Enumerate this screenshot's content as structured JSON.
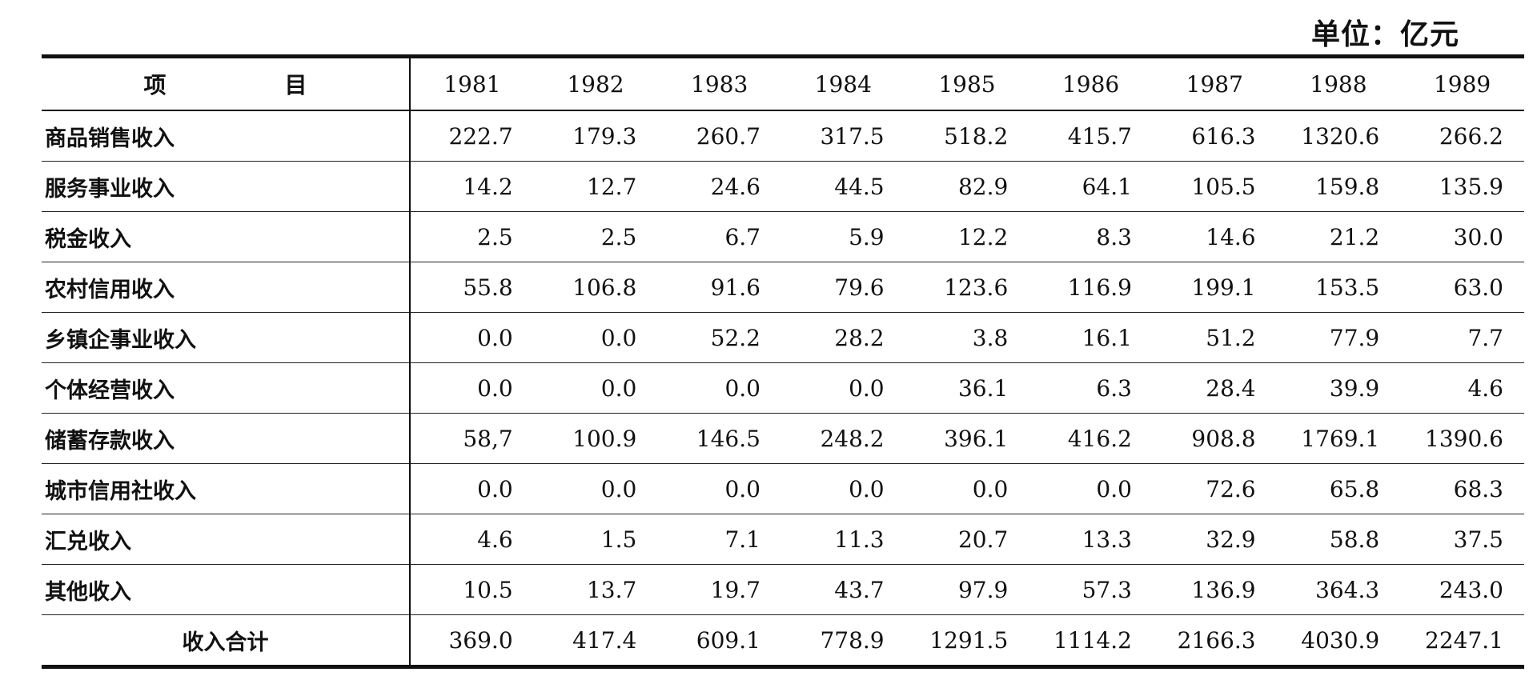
{
  "unit_label": "单位：亿元",
  "table": {
    "header_label": "项　目",
    "years": [
      "1981",
      "1982",
      "1983",
      "1984",
      "1985",
      "1986",
      "1987",
      "1988",
      "1989"
    ],
    "rows": [
      {
        "label": "商品销售收入",
        "values": [
          "222.7",
          "179.3",
          "260.7",
          "317.5",
          "518.2",
          "415.7",
          "616.3",
          "1320.6",
          "266.2"
        ]
      },
      {
        "label": "服务事业收入",
        "values": [
          "14.2",
          "12.7",
          "24.6",
          "44.5",
          "82.9",
          "64.1",
          "105.5",
          "159.8",
          "135.9"
        ]
      },
      {
        "label": "税金收入",
        "values": [
          "2.5",
          "2.5",
          "6.7",
          "5.9",
          "12.2",
          "8.3",
          "14.6",
          "21.2",
          "30.0"
        ]
      },
      {
        "label": "农村信用收入",
        "values": [
          "55.8",
          "106.8",
          "91.6",
          "79.6",
          "123.6",
          "116.9",
          "199.1",
          "153.5",
          "63.0"
        ]
      },
      {
        "label": "乡镇企事业收入",
        "values": [
          "0.0",
          "0.0",
          "52.2",
          "28.2",
          "3.8",
          "16.1",
          "51.2",
          "77.9",
          "7.7"
        ]
      },
      {
        "label": "个体经营收入",
        "values": [
          "0.0",
          "0.0",
          "0.0",
          "0.0",
          "36.1",
          "6.3",
          "28.4",
          "39.9",
          "4.6"
        ]
      },
      {
        "label": "储蓄存款收入",
        "values": [
          "58,7",
          "100.9",
          "146.5",
          "248.2",
          "396.1",
          "416.2",
          "908.8",
          "1769.1",
          "1390.6"
        ]
      },
      {
        "label": "城市信用社收入",
        "values": [
          "0.0",
          "0.0",
          "0.0",
          "0.0",
          "0.0",
          "0.0",
          "72.6",
          "65.8",
          "68.3"
        ]
      },
      {
        "label": "汇兑收入",
        "values": [
          "4.6",
          "1.5",
          "7.1",
          "11.3",
          "20.7",
          "13.3",
          "32.9",
          "58.8",
          "37.5"
        ]
      },
      {
        "label": "其他收入",
        "values": [
          "10.5",
          "13.7",
          "19.7",
          "43.7",
          "97.9",
          "57.3",
          "136.9",
          "364.3",
          "243.0"
        ]
      }
    ],
    "total_row": {
      "label": "收入合计",
      "values": [
        "369.0",
        "417.4",
        "609.1",
        "778.9",
        "1291.5",
        "1114.2",
        "2166.3",
        "4030.9",
        "2247.1"
      ]
    }
  }
}
